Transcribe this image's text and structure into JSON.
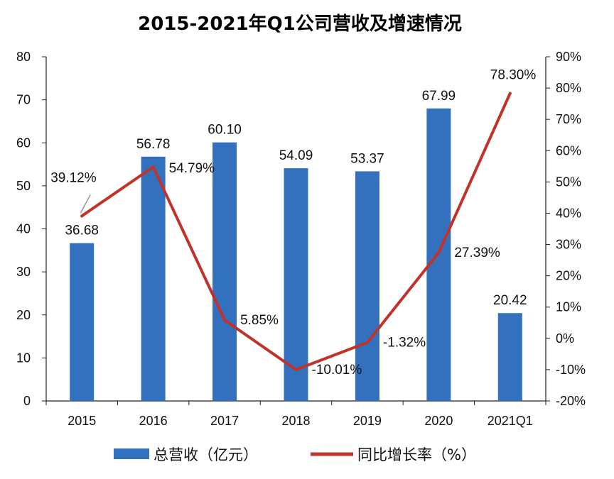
{
  "chart_data": {
    "type": "bar+line",
    "title": "2015-2021年Q1公司营收及增速情况",
    "categories": [
      "2015",
      "2016",
      "2017",
      "2018",
      "2019",
      "2020",
      "2021Q1"
    ],
    "series": [
      {
        "name": "总营收（亿元）",
        "type": "bar",
        "axis": "left",
        "color": "#3370BD",
        "values": [
          36.68,
          56.78,
          60.1,
          54.09,
          53.37,
          67.99,
          20.42
        ],
        "labels": [
          "36.68",
          "56.78",
          "60.10",
          "54.09",
          "53.37",
          "67.99",
          "20.42"
        ]
      },
      {
        "name": "同比增长率（%）",
        "type": "line",
        "axis": "right",
        "color": "#C0322A",
        "values": [
          39.12,
          54.79,
          5.85,
          -10.01,
          -1.32,
          27.39,
          78.3
        ],
        "labels": [
          "39.12%",
          "54.79%",
          "5.85%",
          "-10.01%",
          "-1.32%",
          "27.39%",
          "78.30%"
        ]
      }
    ],
    "y_left": {
      "min": 0,
      "max": 80,
      "step": 10,
      "ticks": [
        "0",
        "10",
        "20",
        "30",
        "40",
        "50",
        "60",
        "70",
        "80"
      ]
    },
    "y_right": {
      "min": -20,
      "max": 90,
      "step": 10,
      "ticks": [
        "-20%",
        "-10%",
        "0%",
        "10%",
        "20%",
        "30%",
        "40%",
        "50%",
        "60%",
        "70%",
        "80%",
        "90%"
      ]
    },
    "grid": false,
    "legend_position": "bottom"
  }
}
